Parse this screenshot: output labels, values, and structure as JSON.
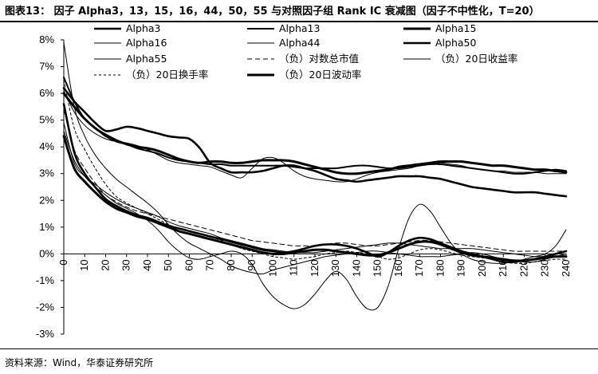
{
  "header": {
    "title": "图表13： 因子 Alpha3，13，15，16，44，50，55 与对照因子组 Rank IC 衰减图（因子不中性化，T=20）"
  },
  "footer": {
    "source": "资料来源：Wind，华泰证券研究所"
  },
  "chart_data": {
    "type": "line",
    "title": "",
    "xlabel": "",
    "ylabel": "",
    "x": [
      0,
      5,
      10,
      15,
      20,
      25,
      30,
      35,
      40,
      45,
      50,
      55,
      60,
      65,
      70,
      75,
      80,
      85,
      90,
      95,
      100,
      105,
      110,
      115,
      120,
      125,
      130,
      135,
      140,
      145,
      150,
      155,
      160,
      165,
      170,
      175,
      180,
      185,
      190,
      195,
      200,
      205,
      210,
      215,
      220,
      225,
      230,
      235,
      240
    ],
    "x_ticks": [
      "0",
      "10",
      "20",
      "30",
      "40",
      "50",
      "60",
      "70",
      "80",
      "90",
      "100",
      "110",
      "120",
      "130",
      "140",
      "150",
      "160",
      "170",
      "180",
      "190",
      "200",
      "210",
      "220",
      "230",
      "240"
    ],
    "y_ticks": [
      "8%",
      "7%",
      "6%",
      "5%",
      "4%",
      "3%",
      "2%",
      "1%",
      "0%",
      "-1%",
      "-2%",
      "-3%"
    ],
    "ylim": [
      -3,
      8
    ],
    "xlim": [
      0,
      240
    ],
    "grid": false,
    "legend_position": "top",
    "series": [
      {
        "name": "Alpha3",
        "color": "#000000",
        "width": 2.6,
        "dash": "",
        "values": [
          6.2,
          5.7,
          5.3,
          4.9,
          4.6,
          4.65,
          4.75,
          4.7,
          4.6,
          4.5,
          4.4,
          4.35,
          4.3,
          3.95,
          3.4,
          3.2,
          3.05,
          3.05,
          3.05,
          3.1,
          3.2,
          3.3,
          3.3,
          3.2,
          3.1,
          2.95,
          2.8,
          2.75,
          2.7,
          2.75,
          2.8,
          2.85,
          2.9,
          2.9,
          2.9,
          2.85,
          2.8,
          2.7,
          2.6,
          2.5,
          2.45,
          2.4,
          2.35,
          2.3,
          2.3,
          2.3,
          2.25,
          2.2,
          2.15
        ]
      },
      {
        "name": "Alpha13",
        "color": "#000000",
        "width": 2.0,
        "dash": "",
        "values": [
          6.6,
          5.7,
          5.05,
          4.7,
          4.4,
          4.2,
          4.1,
          3.95,
          3.85,
          3.75,
          3.6,
          3.5,
          3.45,
          3.4,
          3.35,
          3.35,
          3.3,
          3.3,
          3.3,
          3.3,
          3.3,
          3.3,
          3.25,
          3.2,
          3.2,
          3.2,
          3.2,
          3.25,
          3.3,
          3.3,
          3.25,
          3.2,
          3.2,
          3.25,
          3.3,
          3.35,
          3.35,
          3.3,
          3.25,
          3.2,
          3.15,
          3.1,
          3.05,
          3.0,
          3.0,
          3.05,
          3.1,
          3.15,
          3.1
        ]
      },
      {
        "name": "Alpha15",
        "color": "#000000",
        "width": 3.0,
        "dash": "",
        "values": [
          6.0,
          5.5,
          5.05,
          4.7,
          4.45,
          4.25,
          4.1,
          4.0,
          3.95,
          3.85,
          3.7,
          3.55,
          3.45,
          3.4,
          3.45,
          3.45,
          3.4,
          3.4,
          3.45,
          3.5,
          3.5,
          3.5,
          3.45,
          3.35,
          3.25,
          3.15,
          3.05,
          3.0,
          3.0,
          3.05,
          3.1,
          3.15,
          3.25,
          3.3,
          3.35,
          3.4,
          3.45,
          3.45,
          3.45,
          3.4,
          3.35,
          3.3,
          3.3,
          3.25,
          3.2,
          3.15,
          3.15,
          3.1,
          3.05
        ]
      },
      {
        "name": "Alpha16",
        "color": "#000000",
        "width": 1.0,
        "dash": "",
        "values": [
          6.1,
          5.3,
          4.8,
          4.5,
          4.3,
          4.2,
          4.15,
          4.05,
          3.9,
          3.7,
          3.5,
          3.4,
          3.35,
          3.3,
          3.25,
          3.1,
          2.95,
          2.85,
          3.2,
          3.55,
          3.6,
          3.4,
          3.1,
          2.9,
          2.8,
          2.75,
          2.7,
          2.7,
          2.8,
          2.95,
          3.05,
          3.1,
          3.15,
          3.2,
          3.3,
          3.35,
          3.4,
          3.35,
          3.3,
          3.2,
          3.15,
          3.1,
          3.1,
          3.05,
          3.05,
          3.05,
          3.0,
          3.0,
          3.0
        ]
      },
      {
        "name": "Alpha44",
        "color": "#000000",
        "width": 1.0,
        "dash": "",
        "values": [
          4.9,
          3.4,
          2.9,
          2.6,
          2.3,
          2.05,
          1.85,
          1.7,
          1.55,
          1.4,
          1.2,
          1.05,
          0.95,
          0.85,
          0.75,
          0.6,
          0.5,
          0.4,
          0.3,
          0.2,
          0.15,
          0.1,
          0.05,
          0.05,
          0.05,
          0.1,
          0.15,
          0.2,
          0.25,
          0.3,
          0.35,
          0.4,
          0.4,
          0.35,
          0.3,
          0.25,
          0.2,
          0.2,
          0.2,
          0.2,
          0.15,
          0.1,
          0.05,
          0.0,
          -0.05,
          -0.1,
          -0.1,
          -0.1,
          -0.1
        ]
      },
      {
        "name": "Alpha50",
        "color": "#000000",
        "width": 2.6,
        "dash": "",
        "values": [
          5.6,
          3.8,
          3.0,
          2.5,
          2.05,
          1.8,
          1.6,
          1.45,
          1.35,
          1.2,
          1.05,
          0.95,
          0.85,
          0.75,
          0.65,
          0.55,
          0.45,
          0.35,
          0.25,
          0.15,
          0.1,
          0.05,
          0.1,
          0.2,
          0.3,
          0.35,
          0.35,
          0.3,
          0.2,
          0.05,
          -0.1,
          0.05,
          0.3,
          0.5,
          0.6,
          0.55,
          0.4,
          0.25,
          0.1,
          0.0,
          -0.1,
          -0.2,
          -0.3,
          -0.3,
          -0.25,
          -0.2,
          -0.1,
          0.0,
          0.1
        ]
      },
      {
        "name": "Alpha55",
        "color": "#000000",
        "width": 1.0,
        "dash": "",
        "values": [
          7.9,
          5.5,
          4.4,
          3.7,
          3.2,
          2.8,
          2.5,
          2.2,
          1.9,
          1.55,
          1.1,
          0.7,
          0.4,
          0.2,
          0.0,
          -0.2,
          -0.45,
          -0.6,
          -0.7,
          -0.75,
          -0.6,
          -0.5,
          -0.4,
          -0.3,
          -0.2,
          -0.1,
          -0.05,
          0.0,
          0.05,
          0.1,
          0.1,
          0.05,
          0.0,
          -0.05,
          -0.1,
          -0.1,
          -0.1,
          -0.05,
          0.0,
          0.05,
          0.0,
          -0.1,
          -0.2,
          -0.25,
          -0.3,
          -0.3,
          -0.2,
          -0.1,
          0.0
        ]
      },
      {
        "name": "（负）对数总市值",
        "color": "#000000",
        "width": 1.0,
        "dash": "6,4",
        "values": [
          5.4,
          3.9,
          3.2,
          2.65,
          2.2,
          1.95,
          1.75,
          1.6,
          1.5,
          1.4,
          1.3,
          1.2,
          1.1,
          1.0,
          0.9,
          0.8,
          0.7,
          0.6,
          0.5,
          0.45,
          0.4,
          0.35,
          0.3,
          0.3,
          0.3,
          0.35,
          0.4,
          0.4,
          0.35,
          0.3,
          0.3,
          0.35,
          0.4,
          0.45,
          0.5,
          0.5,
          0.45,
          0.4,
          0.35,
          0.3,
          0.25,
          0.2,
          0.15,
          0.1,
          0.1,
          0.1,
          0.1,
          0.1,
          0.1
        ]
      },
      {
        "name": "（负）20日收益率",
        "color": "#000000",
        "width": 1.0,
        "dash": "",
        "values": [
          4.6,
          3.5,
          2.9,
          2.5,
          2.2,
          1.9,
          1.7,
          1.5,
          1.25,
          0.9,
          0.45,
          0.1,
          -0.15,
          -0.2,
          -0.1,
          0.0,
          0.1,
          0.0,
          -0.4,
          -1.1,
          -1.6,
          -1.9,
          -2.05,
          -1.9,
          -1.5,
          -1.0,
          -0.65,
          -0.95,
          -1.6,
          -2.05,
          -2.0,
          -1.2,
          0.2,
          1.35,
          1.85,
          1.6,
          1.0,
          0.4,
          0.0,
          -0.2,
          -0.3,
          -0.35,
          -0.35,
          -0.3,
          -0.2,
          -0.1,
          0.0,
          0.3,
          0.9
        ]
      },
      {
        "name": "（负）20日换手率",
        "color": "#000000",
        "width": 1.0,
        "dash": "3,3",
        "values": [
          6.5,
          4.7,
          3.9,
          3.2,
          2.6,
          2.15,
          1.9,
          1.7,
          1.5,
          1.3,
          1.1,
          0.95,
          0.85,
          0.75,
          0.65,
          0.5,
          0.35,
          0.2,
          0.1,
          0.0,
          -0.1,
          -0.15,
          -0.2,
          -0.15,
          -0.1,
          0.0,
          0.05,
          0.1,
          0.05,
          0.0,
          -0.1,
          -0.2,
          -0.15,
          0.0,
          0.15,
          0.2,
          0.15,
          0.05,
          -0.05,
          -0.1,
          -0.15,
          -0.2,
          -0.3,
          -0.35,
          -0.35,
          -0.3,
          -0.25,
          -0.2,
          -0.2
        ]
      },
      {
        "name": "（负）20日波动率",
        "color": "#000000",
        "width": 3.0,
        "dash": "",
        "values": [
          4.4,
          3.2,
          2.7,
          2.3,
          1.95,
          1.7,
          1.55,
          1.4,
          1.3,
          1.15,
          1.0,
          0.85,
          0.75,
          0.65,
          0.55,
          0.45,
          0.35,
          0.25,
          0.15,
          0.05,
          0.0,
          0.0,
          0.05,
          0.1,
          0.15,
          0.15,
          0.1,
          0.05,
          0.0,
          -0.05,
          -0.05,
          0.05,
          0.2,
          0.35,
          0.45,
          0.45,
          0.35,
          0.2,
          0.05,
          -0.05,
          -0.1,
          -0.15,
          -0.2,
          -0.25,
          -0.25,
          -0.2,
          -0.15,
          -0.1,
          -0.1
        ]
      }
    ]
  }
}
